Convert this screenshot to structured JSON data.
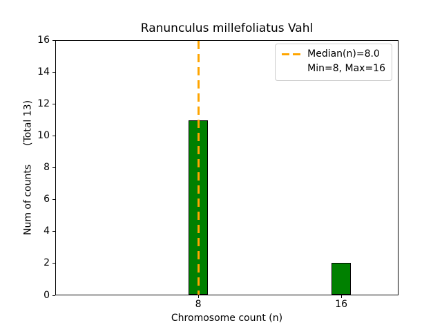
{
  "chart_data": {
    "type": "bar",
    "title": "Ranunculus millefoliatus Vahl",
    "xlabel": "Chromosome count (n)",
    "ylabel": "Num of counts",
    "ylabel_note": "(Total 13)",
    "total_counts": 13,
    "x": [
      8,
      16
    ],
    "values": [
      11,
      2
    ],
    "xticks": [
      8,
      16
    ],
    "yticks": [
      0,
      2,
      4,
      6,
      8,
      10,
      12,
      14,
      16
    ],
    "xlim": [
      0,
      19.2
    ],
    "ylim": [
      0,
      16
    ],
    "grid": false,
    "median_line": {
      "x": 8
    },
    "legend": {
      "position": "upper right",
      "entries": [
        {
          "label": "Median(n)=8.0",
          "handle": "orange-dashed-line"
        },
        {
          "label": "Min=8, Max=16",
          "handle": "none"
        }
      ]
    },
    "colors": {
      "bar_fill": "#008000",
      "bar_edge": "#000000",
      "median_line": "#FFA500",
      "text": "#000000",
      "legend_border": "#cccccc",
      "background": "#ffffff"
    }
  }
}
